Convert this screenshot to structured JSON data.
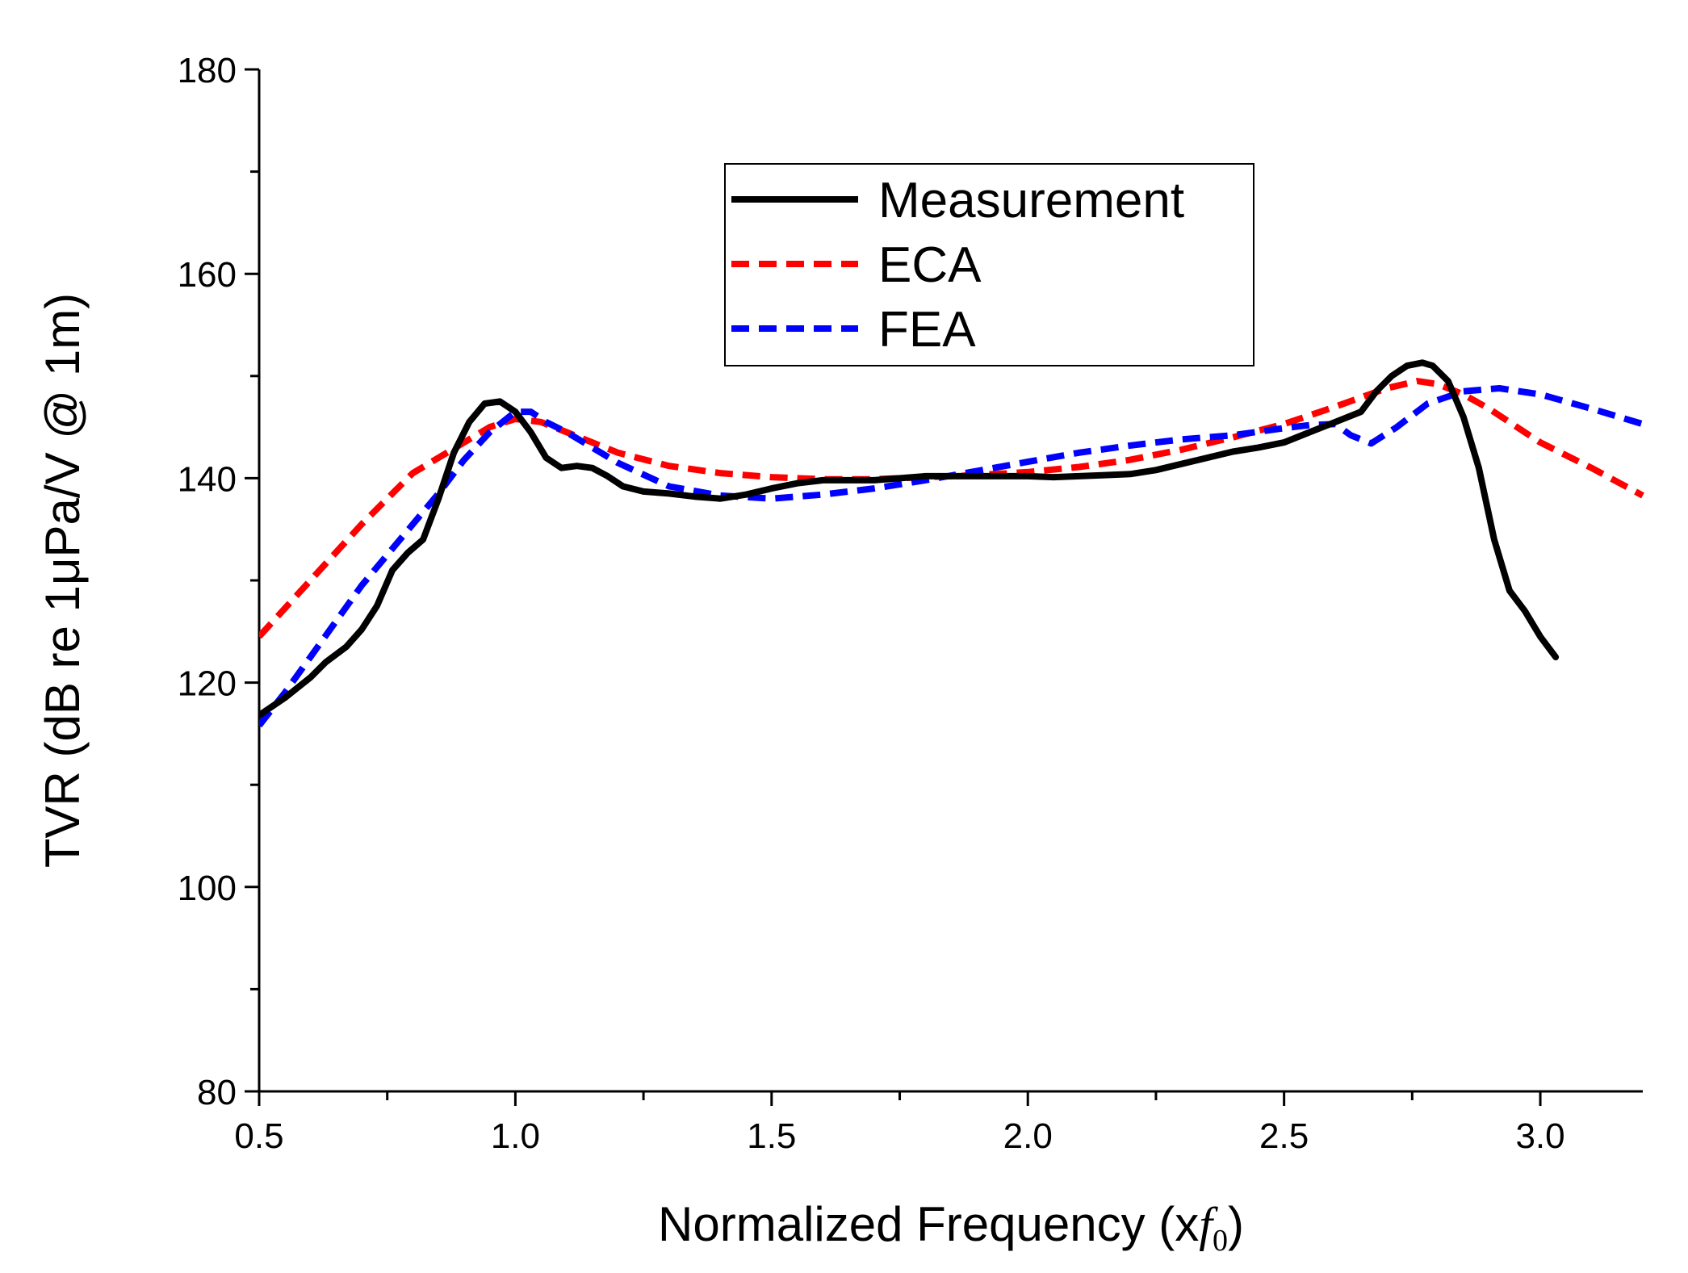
{
  "chart_data": {
    "type": "line",
    "title": "",
    "xlabel_prefix": "Normalized Frequency (x",
    "xlabel_var": "f",
    "xlabel_sub": "0",
    "xlabel_suffix": ")",
    "ylabel": "TVR (dB re 1μPa/V @ 1m)",
    "xlim": [
      0.5,
      3.2
    ],
    "ylim": [
      80,
      180
    ],
    "xticks": [
      "0.5",
      "1.0",
      "1.5",
      "2.0",
      "2.5",
      "3.0"
    ],
    "yticks": [
      "80",
      "100",
      "120",
      "140",
      "160",
      "180"
    ],
    "legend_position": "upper-center",
    "series": [
      {
        "name": "Measurement",
        "style": "solid",
        "color": "#000000",
        "x": [
          0.5,
          0.55,
          0.6,
          0.63,
          0.67,
          0.7,
          0.73,
          0.76,
          0.79,
          0.82,
          0.85,
          0.88,
          0.91,
          0.94,
          0.97,
          1.0,
          1.03,
          1.06,
          1.09,
          1.12,
          1.15,
          1.18,
          1.21,
          1.25,
          1.3,
          1.35,
          1.4,
          1.45,
          1.5,
          1.55,
          1.6,
          1.7,
          1.8,
          1.9,
          2.0,
          2.05,
          2.1,
          2.15,
          2.2,
          2.25,
          2.3,
          2.35,
          2.4,
          2.45,
          2.5,
          2.55,
          2.6,
          2.65,
          2.68,
          2.71,
          2.74,
          2.77,
          2.79,
          2.82,
          2.85,
          2.88,
          2.91,
          2.94,
          2.97,
          3.0,
          3.03
        ],
        "y": [
          116.8,
          118.5,
          120.5,
          122,
          123.5,
          125.2,
          127.5,
          131,
          132.7,
          134,
          138,
          142.5,
          145.5,
          147.3,
          147.5,
          146.5,
          144.5,
          142,
          141,
          141.2,
          141,
          140.2,
          139.2,
          138.7,
          138.5,
          138.2,
          138,
          138.4,
          139,
          139.5,
          139.8,
          139.8,
          140.2,
          140.2,
          140.2,
          140.1,
          140.2,
          140.3,
          140.4,
          140.8,
          141.4,
          142,
          142.6,
          143,
          143.5,
          144.5,
          145.5,
          146.5,
          148.5,
          150,
          151,
          151.3,
          151,
          149.5,
          146,
          141,
          134,
          129,
          127,
          124.5,
          122.5
        ]
      },
      {
        "name": "ECA",
        "style": "dashed",
        "color": "#ff0000",
        "x": [
          0.5,
          0.6,
          0.7,
          0.8,
          0.9,
          0.95,
          1.0,
          1.05,
          1.1,
          1.2,
          1.3,
          1.4,
          1.5,
          1.6,
          1.7,
          1.8,
          1.9,
          2.0,
          2.1,
          2.2,
          2.3,
          2.4,
          2.5,
          2.6,
          2.7,
          2.76,
          2.8,
          2.85,
          2.9,
          3.0,
          3.1,
          3.2
        ],
        "y": [
          124.5,
          130,
          135.5,
          140.5,
          143.5,
          145,
          145.8,
          145.5,
          144.5,
          142.5,
          141.2,
          140.5,
          140.1,
          139.9,
          139.9,
          140.1,
          140.3,
          140.6,
          141.1,
          141.8,
          142.8,
          144,
          145.3,
          147,
          148.8,
          149.5,
          149.2,
          148.2,
          146.8,
          143.5,
          141,
          138.3
        ]
      },
      {
        "name": "FEA",
        "style": "dashed",
        "color": "#0000ff",
        "x": [
          0.5,
          0.55,
          0.6,
          0.65,
          0.7,
          0.75,
          0.8,
          0.85,
          0.9,
          0.95,
          1.0,
          1.03,
          1.06,
          1.1,
          1.2,
          1.3,
          1.4,
          1.5,
          1.6,
          1.7,
          1.8,
          1.9,
          2.0,
          2.1,
          2.2,
          2.3,
          2.4,
          2.5,
          2.55,
          2.6,
          2.63,
          2.67,
          2.72,
          2.78,
          2.85,
          2.92,
          3.0,
          3.1,
          3.2
        ],
        "y": [
          115.8,
          119,
          122.5,
          126,
          129.5,
          132.5,
          135.5,
          138.5,
          141.8,
          144.5,
          146.5,
          146.5,
          145.5,
          144.5,
          141.5,
          139.2,
          138.3,
          138,
          138.4,
          139,
          139.8,
          140.7,
          141.6,
          142.5,
          143.2,
          143.8,
          144.2,
          144.9,
          145.2,
          145.3,
          144.2,
          143.4,
          145,
          147.3,
          148.5,
          148.8,
          148.2,
          146.8,
          145.3
        ]
      }
    ]
  }
}
